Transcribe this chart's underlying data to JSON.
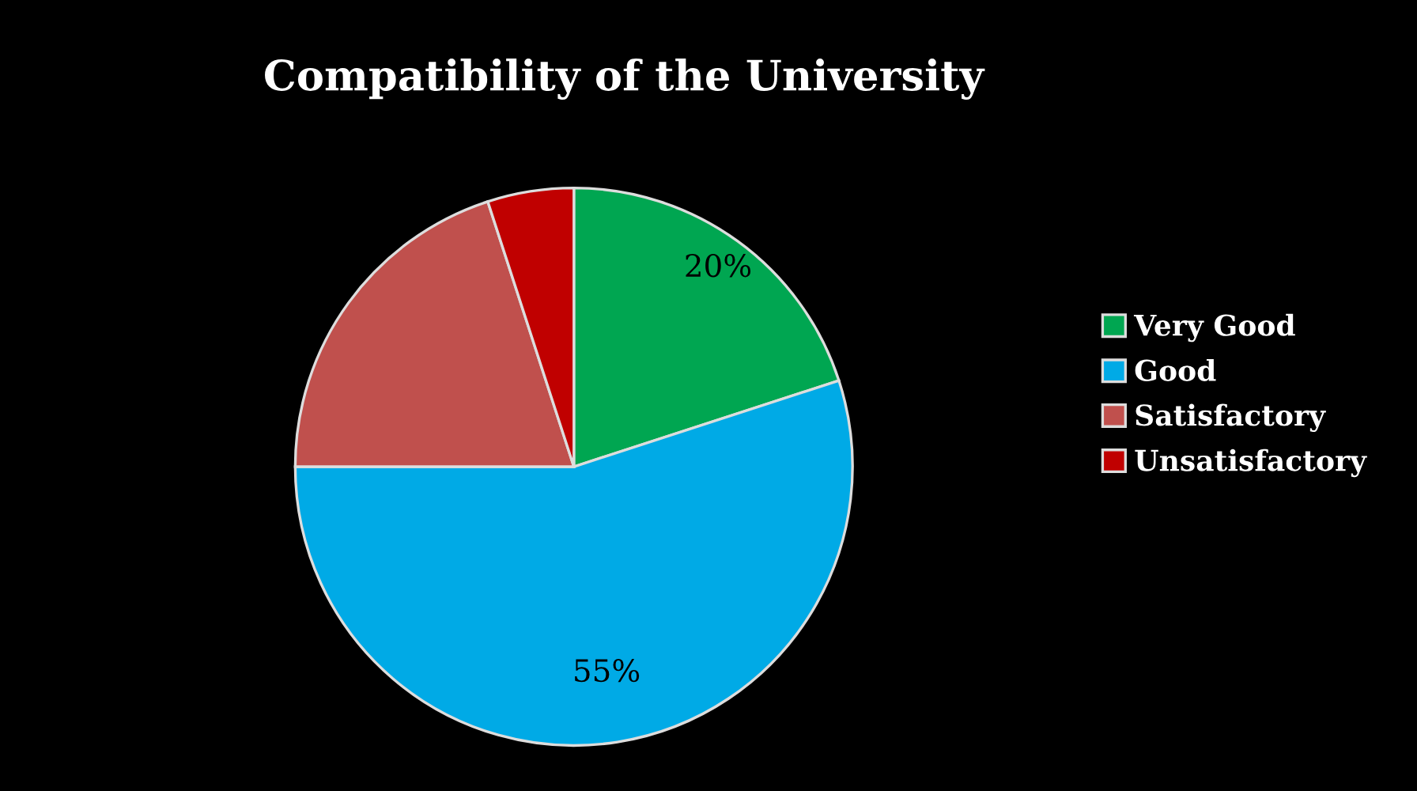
{
  "chart_data": {
    "type": "pie",
    "title": "Compatibility of the University",
    "categories": [
      "Very Good",
      "Good",
      "Satisfactory",
      "Unsatisfactory"
    ],
    "values": [
      20,
      55,
      20,
      5
    ],
    "colors": [
      "#00a651",
      "#00aae6",
      "#c0504d",
      "#c00000"
    ],
    "value_labels": [
      "20%",
      "55%",
      null,
      null
    ],
    "legend": "right"
  }
}
